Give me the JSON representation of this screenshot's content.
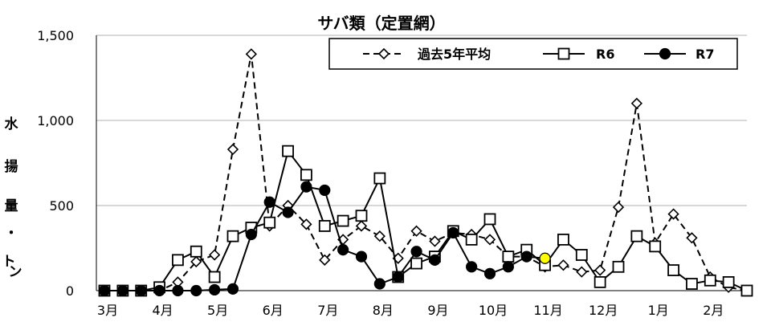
{
  "chart_data": {
    "type": "line",
    "title": "サバ類（定置網）",
    "ylabel_chars": [
      "水",
      "揚",
      "量",
      "・",
      "ト",
      "ン"
    ],
    "ylim": [
      0,
      1500
    ],
    "yticks": [
      0,
      500,
      1000,
      1500
    ],
    "ytick_labels": [
      "0",
      "500",
      "1,000",
      "1,500"
    ],
    "grid": true,
    "legend_position": "top-right",
    "month_labels": [
      "3月",
      "4月",
      "5月",
      "6月",
      "7月",
      "8月",
      "9月",
      "10月",
      "11月",
      "12月",
      "1月",
      "2月"
    ],
    "points_per_month": 3,
    "highlight": {
      "series": 2,
      "index": 24,
      "color": "#ffff00"
    },
    "series": [
      {
        "name": "過去5年平均",
        "style": "dashed",
        "marker": "diamond-open",
        "values": [
          0,
          0,
          0,
          0,
          50,
          170,
          210,
          830,
          1390,
          380,
          500,
          390,
          180,
          300,
          380,
          320,
          190,
          350,
          290,
          340,
          330,
          300,
          200,
          200,
          140,
          150,
          110,
          120,
          490,
          1100,
          280,
          450,
          310,
          80,
          20,
          0
        ]
      },
      {
        "name": "R6",
        "style": "solid",
        "marker": "square-open",
        "values": [
          0,
          0,
          0,
          20,
          180,
          230,
          80,
          320,
          370,
          400,
          820,
          680,
          380,
          410,
          440,
          660,
          80,
          160,
          200,
          350,
          300,
          420,
          200,
          240,
          150,
          300,
          210,
          50,
          140,
          320,
          260,
          120,
          40,
          60,
          50,
          0
        ]
      },
      {
        "name": "R7",
        "style": "solid",
        "marker": "circle-filled",
        "values": [
          0,
          0,
          0,
          0,
          0,
          0,
          5,
          10,
          330,
          520,
          460,
          610,
          590,
          240,
          200,
          40,
          80,
          230,
          180,
          340,
          140,
          100,
          140,
          200,
          190
        ]
      }
    ]
  }
}
